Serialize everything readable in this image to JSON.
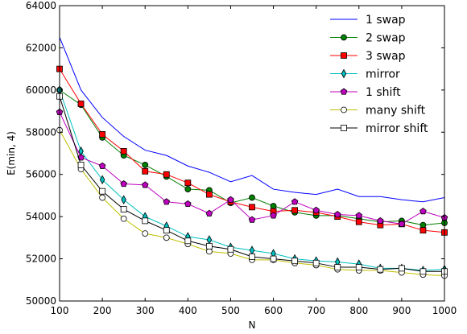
{
  "chart_data": {
    "type": "line",
    "title": "",
    "xlabel": "N",
    "ylabel": "E(min, 4)",
    "xlim": [
      100,
      1000
    ],
    "ylim": [
      50000,
      64000
    ],
    "xticks": [
      100,
      200,
      300,
      400,
      500,
      600,
      700,
      800,
      900,
      1000
    ],
    "yticks": [
      50000,
      52000,
      54000,
      56000,
      58000,
      60000,
      62000,
      64000
    ],
    "grid": false,
    "legend_position": "top-right",
    "x": [
      100,
      150,
      200,
      250,
      300,
      350,
      400,
      450,
      500,
      550,
      600,
      650,
      700,
      750,
      800,
      850,
      900,
      950,
      1000
    ],
    "series": [
      {
        "name": "1 swap",
        "color": "#0000ff",
        "marker": "none",
        "values": [
          62500,
          60000,
          58700,
          57800,
          57150,
          56900,
          56400,
          56100,
          55650,
          55950,
          55300,
          55150,
          55050,
          55300,
          54950,
          54950,
          54800,
          54700,
          54900
        ]
      },
      {
        "name": "2 swap",
        "color": "#008000",
        "marker": "circle",
        "values": [
          60000,
          59300,
          57750,
          56900,
          56450,
          55900,
          55300,
          55250,
          54650,
          54900,
          54500,
          54200,
          54050,
          54050,
          53900,
          53750,
          53800,
          53600,
          53700
        ]
      },
      {
        "name": "3 swap",
        "color": "#ff0000",
        "marker": "square",
        "values": [
          61000,
          59350,
          57900,
          57100,
          56150,
          56000,
          55600,
          55050,
          54700,
          54450,
          54250,
          54300,
          54200,
          54000,
          53750,
          53600,
          53650,
          53350,
          53250
        ]
      },
      {
        "name": "mirror",
        "color": "#00bfbf",
        "marker": "thin-diamond",
        "values": [
          60000,
          57100,
          55750,
          54800,
          54000,
          53550,
          53050,
          52900,
          52550,
          52400,
          52250,
          52000,
          51900,
          51850,
          51750,
          51550,
          51550,
          51450,
          51500
        ]
      },
      {
        "name": "1 shift",
        "color": "#bf00bf",
        "marker": "pentagon",
        "values": [
          58950,
          56800,
          56400,
          55550,
          55500,
          54700,
          54600,
          54150,
          54800,
          53850,
          54050,
          54700,
          54300,
          54100,
          54050,
          53800,
          53650,
          54250,
          53950
        ]
      },
      {
        "name": "many shift",
        "color": "#bfbf00",
        "marker": "circle-open",
        "values": [
          58100,
          56250,
          54900,
          53900,
          53200,
          53000,
          52700,
          52350,
          52250,
          51950,
          51950,
          51800,
          51700,
          51500,
          51450,
          51450,
          51350,
          51250,
          51200
        ]
      },
      {
        "name": "mirror shift",
        "color": "#000000",
        "marker": "square-open",
        "values": [
          59700,
          56450,
          55200,
          54350,
          53800,
          53350,
          52850,
          52600,
          52450,
          52100,
          52000,
          51900,
          51800,
          51600,
          51600,
          51500,
          51550,
          51400,
          51400
        ]
      }
    ]
  }
}
